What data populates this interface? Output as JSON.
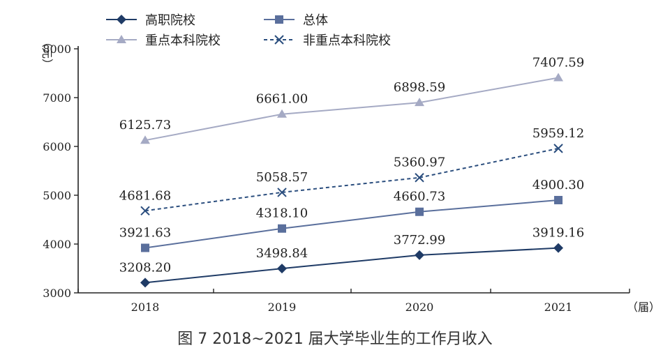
{
  "chart_data": {
    "type": "line",
    "title": "",
    "caption": "图 7   2018~2021 届大学毕业生的工作月收入",
    "categories": [
      "2018",
      "2019",
      "2020",
      "2021"
    ],
    "ylabel": "（元）",
    "xlabel": "（届）",
    "ylim": [
      3000,
      8000
    ],
    "yticks": [
      3000,
      4000,
      5000,
      6000,
      7000,
      8000
    ],
    "grid": false,
    "legend_position": "top-left",
    "series": [
      {
        "name": "高职院校",
        "values": [
          3208.2,
          3498.84,
          3772.99,
          3919.16
        ],
        "labels": [
          "3208.20",
          "3498.84",
          "3772.99",
          "3919.16"
        ],
        "color": "#1f3b66",
        "marker": "diamond",
        "dashed": false
      },
      {
        "name": "总体",
        "values": [
          3921.63,
          4318.1,
          4660.73,
          4900.3
        ],
        "labels": [
          "3921.63",
          "4318.10",
          "4660.73",
          "4900.30"
        ],
        "color": "#5a6f9c",
        "marker": "square",
        "dashed": false
      },
      {
        "name": "重点本科院校",
        "values": [
          6125.73,
          6661.0,
          6898.59,
          7407.59
        ],
        "labels": [
          "6125.73",
          "6661.00",
          "6898.59",
          "7407.59"
        ],
        "color": "#a5aac4",
        "marker": "triangle",
        "dashed": false
      },
      {
        "name": "非重点本科院校",
        "values": [
          4681.68,
          5058.57,
          5360.97,
          5959.12
        ],
        "labels": [
          "4681.68",
          "5058.57",
          "5360.97",
          "5959.12"
        ],
        "color": "#2b4e7e",
        "marker": "x",
        "dashed": true
      }
    ]
  }
}
